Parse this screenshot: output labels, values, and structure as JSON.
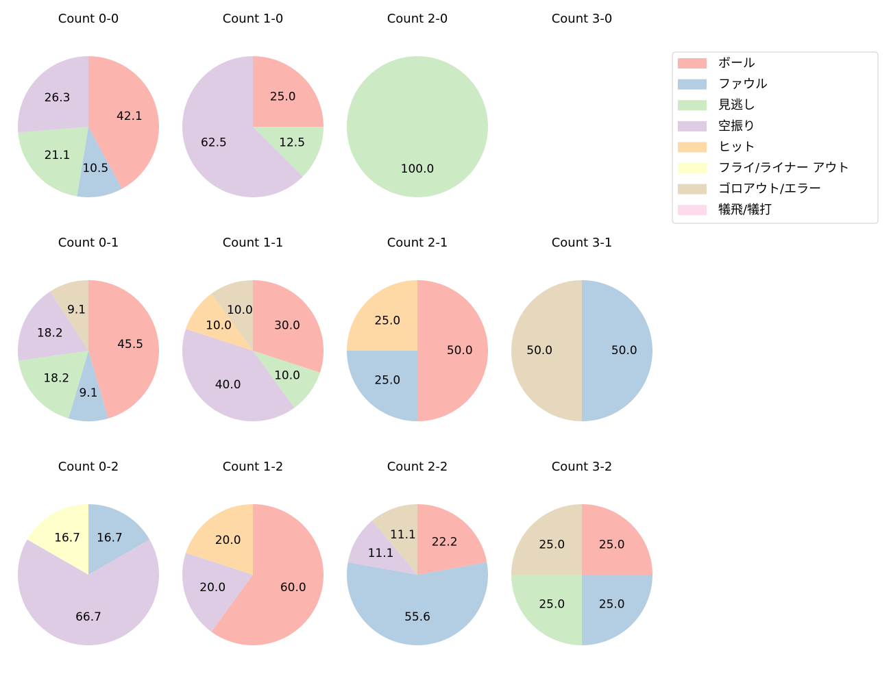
{
  "chart_data": [
    {
      "type": "pie",
      "title": "Count 0-0",
      "categories": [
        "ボール",
        "ファウル",
        "見逃し",
        "空振り"
      ],
      "values": [
        42.1,
        10.5,
        21.1,
        26.3
      ],
      "value_labels": [
        "42.1",
        "10.5",
        "21.1",
        "26.3"
      ],
      "colors": [
        "#fbb4ae",
        "#b3cde3",
        "#ccebc5",
        "#decbe4"
      ]
    },
    {
      "type": "pie",
      "title": "Count 1-0",
      "categories": [
        "ボール",
        "見逃し",
        "空振り"
      ],
      "values": [
        25,
        12.5,
        62.5
      ],
      "value_labels": [
        "25.0",
        "12.5",
        "62.5"
      ],
      "colors": [
        "#fbb4ae",
        "#ccebc5",
        "#decbe4"
      ]
    },
    {
      "type": "pie",
      "title": "Count 2-0",
      "categories": [
        "見逃し"
      ],
      "values": [
        100
      ],
      "value_labels": [
        "100.0"
      ],
      "colors": [
        "#ccebc5"
      ]
    },
    {
      "type": "pie",
      "title": "Count 3-0",
      "categories": [],
      "values": [],
      "value_labels": [],
      "colors": []
    },
    {
      "type": "pie",
      "title": "Count 0-1",
      "categories": [
        "ボール",
        "ファウル",
        "見逃し",
        "空振り",
        "ゴロアウト/エラー"
      ],
      "values": [
        45.5,
        9.1,
        18.2,
        18.2,
        9.1
      ],
      "value_labels": [
        "45.5",
        "9.1",
        "18.2",
        "18.2",
        "9.1"
      ],
      "colors": [
        "#fbb4ae",
        "#b3cde3",
        "#ccebc5",
        "#decbe4",
        "#e5d8bd"
      ]
    },
    {
      "type": "pie",
      "title": "Count 1-1",
      "categories": [
        "ボール",
        "見逃し",
        "空振り",
        "ヒット",
        "ゴロアウト/エラー"
      ],
      "values": [
        30,
        10,
        40,
        10,
        10
      ],
      "value_labels": [
        "30.0",
        "10.0",
        "40.0",
        "10.0",
        "10.0"
      ],
      "colors": [
        "#fbb4ae",
        "#ccebc5",
        "#decbe4",
        "#fed9a6",
        "#e5d8bd"
      ]
    },
    {
      "type": "pie",
      "title": "Count 2-1",
      "categories": [
        "ボール",
        "ファウル",
        "ヒット"
      ],
      "values": [
        50,
        25,
        25
      ],
      "value_labels": [
        "50.0",
        "25.0",
        "25.0"
      ],
      "colors": [
        "#fbb4ae",
        "#b3cde3",
        "#fed9a6"
      ]
    },
    {
      "type": "pie",
      "title": "Count 3-1",
      "categories": [
        "ファウル",
        "ゴロアウト/エラー"
      ],
      "values": [
        50,
        50
      ],
      "value_labels": [
        "50.0",
        "50.0"
      ],
      "colors": [
        "#b3cde3",
        "#e5d8bd"
      ]
    },
    {
      "type": "pie",
      "title": "Count 0-2",
      "categories": [
        "ファウル",
        "空振り",
        "フライ/ライナー アウト"
      ],
      "values": [
        16.7,
        66.7,
        16.7
      ],
      "value_labels": [
        "16.7",
        "66.7",
        "16.7"
      ],
      "colors": [
        "#b3cde3",
        "#decbe4",
        "#ffffcc"
      ]
    },
    {
      "type": "pie",
      "title": "Count 1-2",
      "categories": [
        "ボール",
        "空振り",
        "ヒット"
      ],
      "values": [
        60,
        20,
        20
      ],
      "value_labels": [
        "60.0",
        "20.0",
        "20.0"
      ],
      "colors": [
        "#fbb4ae",
        "#decbe4",
        "#fed9a6"
      ]
    },
    {
      "type": "pie",
      "title": "Count 2-2",
      "categories": [
        "ボール",
        "ファウル",
        "空振り",
        "ゴロアウト/エラー"
      ],
      "values": [
        22.2,
        55.6,
        11.1,
        11.1
      ],
      "value_labels": [
        "22.2",
        "55.6",
        "11.1",
        "11.1"
      ],
      "colors": [
        "#fbb4ae",
        "#b3cde3",
        "#decbe4",
        "#e5d8bd"
      ]
    },
    {
      "type": "pie",
      "title": "Count 3-2",
      "categories": [
        "ボール",
        "ファウル",
        "見逃し",
        "ゴロアウト/エラー"
      ],
      "values": [
        25,
        25,
        25,
        25
      ],
      "value_labels": [
        "25.0",
        "25.0",
        "25.0",
        "25.0"
      ],
      "colors": [
        "#fbb4ae",
        "#b3cde3",
        "#ccebc5",
        "#e5d8bd"
      ]
    }
  ],
  "legend": {
    "position": "upper right",
    "labels": [
      "ボール",
      "ファウル",
      "見逃し",
      "空振り",
      "ヒット",
      "フライ/ライナー アウト",
      "ゴロアウト/エラー",
      "犠飛/犠打"
    ],
    "colors": [
      "#fbb4ae",
      "#b3cde3",
      "#ccebc5",
      "#decbe4",
      "#fed9a6",
      "#ffffcc",
      "#e5d8bd",
      "#fddaec"
    ]
  }
}
